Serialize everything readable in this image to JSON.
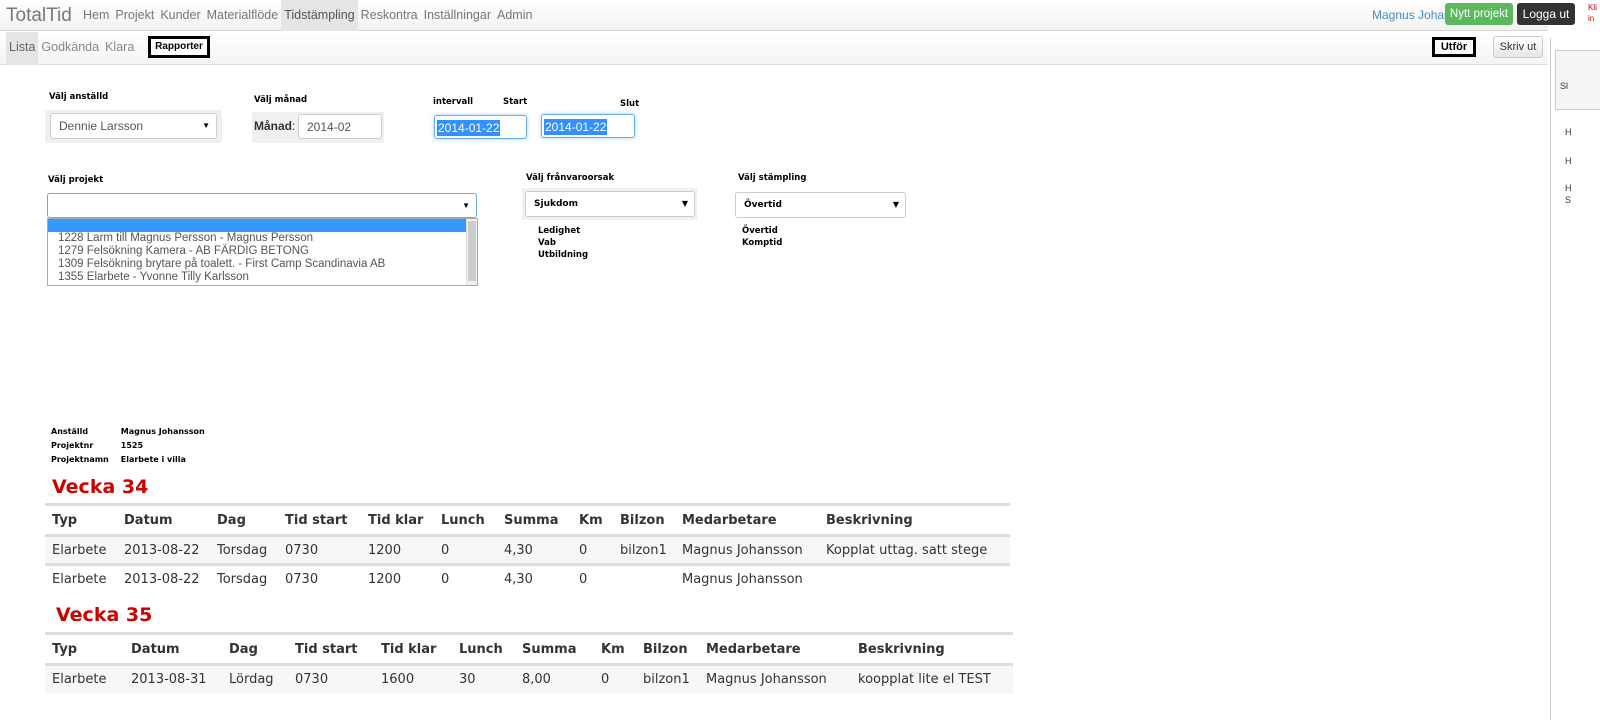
{
  "app": {
    "brand": "TotalTid",
    "nav": [
      "Hem",
      "Projekt",
      "Kunder",
      "Materialflöde",
      "Tidstämpling",
      "Reskontra",
      "Inställningar",
      "Admin"
    ],
    "active_nav": "Tidstämpling",
    "user": "Magnus Johansson",
    "new_project": "Nytt projekt",
    "logout": "Logga ut",
    "corner_text": [
      "Kli",
      "in"
    ]
  },
  "subnav": {
    "items": [
      "Lista",
      "Godkända",
      "Klara"
    ],
    "active": "Lista",
    "rapporter": "Rapporter",
    "utfor": "Utför",
    "print": "Skriv ut"
  },
  "side_panel": {
    "tab_text": "Sl",
    "letters": [
      "H",
      "H",
      "H",
      "S"
    ]
  },
  "filters": {
    "employee": {
      "label": "Välj anställd",
      "value": "Dennie Larsson"
    },
    "month": {
      "label": "Välj månad",
      "field_label": "Månad",
      "value": "2014-02"
    },
    "interval": {
      "label": "intervall",
      "start_label": "Start",
      "end_label": "Slut",
      "start": "2014-01-22",
      "end": "2014-01-22"
    },
    "project": {
      "label": "Välj projekt",
      "value": "",
      "options": [
        "1228 Larm till Magnus Persson - Magnus Persson",
        "1279 Felsökning Kamera - AB FÄRDIG BETONG",
        "1309 Felsökning brytare på toalett. - First Camp Scandinavia AB",
        "1355 Elarbete - Yvonne Tilly Karlsson"
      ]
    },
    "absence": {
      "label": "Välj frånvaroorsak",
      "value": "Sjukdom",
      "options": [
        "Ledighet",
        "Vab",
        "Utbildning"
      ]
    },
    "stamping": {
      "label": "Välj stämpling",
      "value": "Övertid",
      "options": [
        "Övertid",
        "Komptid"
      ]
    }
  },
  "report": {
    "info": [
      {
        "k": "Anställd",
        "v": "Magnus Johansson"
      },
      {
        "k": "Projektnr",
        "v": "1525"
      },
      {
        "k": "Projektnamn",
        "v": "Elarbete i villa"
      }
    ],
    "columns": [
      "Typ",
      "Datum",
      "Dag",
      "Tid start",
      "Tid klar",
      "Lunch",
      "Summa",
      "Km",
      "Bilzon",
      "Medarbetare",
      "Beskrivning"
    ],
    "weeks": [
      {
        "title": "Vecka 34",
        "rows": [
          [
            "Elarbete",
            "2013-08-22",
            "Torsdag",
            "0730",
            "1200",
            "0",
            "4,30",
            "0",
            "bilzon1",
            "Magnus Johansson",
            "Kopplat uttag. satt stege"
          ],
          [
            "Elarbete",
            "2013-08-22",
            "Torsdag",
            "0730",
            "1200",
            "0",
            "4,30",
            "0",
            "",
            "Magnus Johansson",
            ""
          ]
        ]
      },
      {
        "title": "Vecka 35",
        "rows": [
          [
            "Elarbete",
            "2013-08-31",
            "Lördag",
            "0730",
            "1600",
            "30",
            "8,00",
            "0",
            "bilzon1",
            "Magnus Johansson",
            "koopplat lite el TEST"
          ]
        ]
      }
    ]
  }
}
